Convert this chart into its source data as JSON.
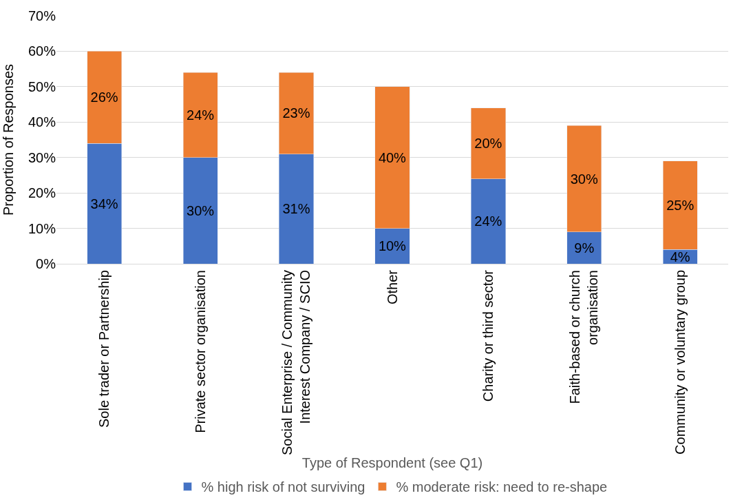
{
  "chart_data": {
    "type": "bar",
    "stacked": true,
    "xlabel": "Type of Respondent (see Q1)",
    "ylabel": "Proportion of Responses",
    "categories": [
      "Sole trader or Partnership",
      "Private sector organisation",
      "Social Enterprise / Community\nInterest Company / SCIO",
      "Other",
      "Charity or third sector",
      "Faith-based or church\norganisation",
      "Community or voluntary group"
    ],
    "series": [
      {
        "name": "% high risk of not surviving",
        "color": "#4472c4",
        "values": [
          34,
          30,
          31,
          10,
          24,
          9,
          4
        ],
        "value_labels": [
          "34%",
          "30%",
          "31%",
          "10%",
          "24%",
          "9%",
          "4%"
        ]
      },
      {
        "name": "% moderate risk: need to re-shape",
        "color": "#ed7d31",
        "values": [
          26,
          24,
          23,
          40,
          20,
          30,
          25
        ],
        "value_labels": [
          "26%",
          "24%",
          "23%",
          "40%",
          "20%",
          "30%",
          "25%"
        ]
      }
    ],
    "ylim": [
      0,
      70
    ],
    "yticks": [
      {
        "value": 0,
        "label": "0%"
      },
      {
        "value": 10,
        "label": "10%"
      },
      {
        "value": 20,
        "label": "20%"
      },
      {
        "value": 30,
        "label": "30%"
      },
      {
        "value": 40,
        "label": "40%"
      },
      {
        "value": 50,
        "label": "50%"
      },
      {
        "value": 60,
        "label": "60%"
      },
      {
        "value": 70,
        "label": "70%"
      }
    ],
    "grid": "y",
    "legend": "bottom"
  }
}
